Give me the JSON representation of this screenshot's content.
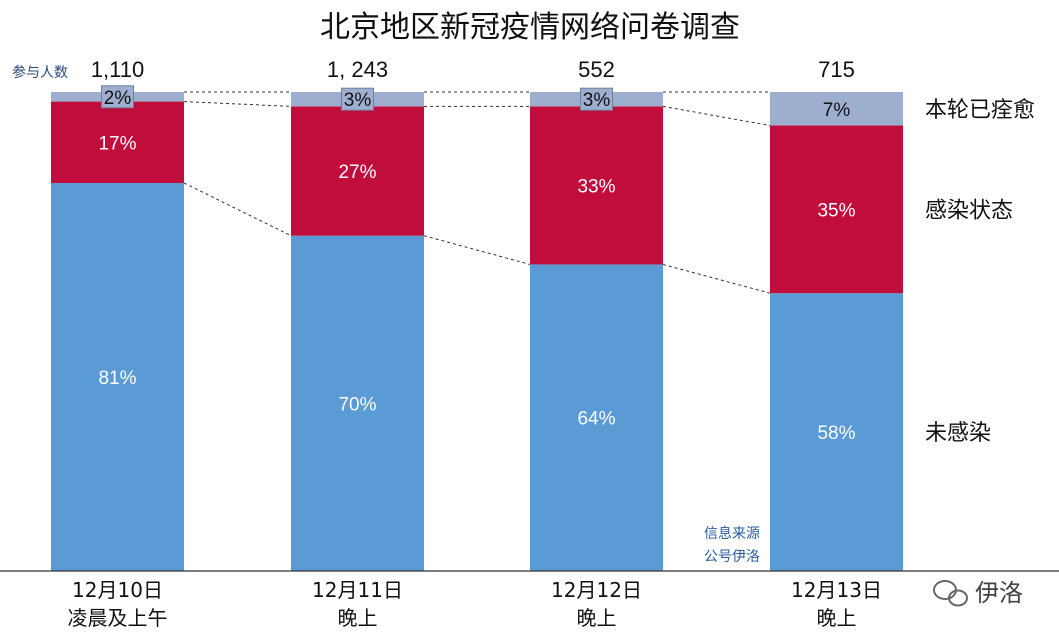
{
  "chart_data": {
    "type": "bar",
    "stacked": true,
    "title": "北京地区新冠疫情网络问卷调查",
    "participants_label": "参与人数",
    "categories": [
      [
        "12月10日",
        "凌晨及上午"
      ],
      [
        "12月11日",
        "晚上"
      ],
      [
        "12月12日",
        "晚上"
      ],
      [
        "12月13日",
        "晚上"
      ]
    ],
    "participants": [
      "1,110",
      "1, 243",
      "552",
      "715"
    ],
    "series": [
      {
        "name": "未感染",
        "values": [
          81,
          70,
          64,
          58
        ],
        "color": "#5b9bd5"
      },
      {
        "name": "感染状态",
        "values": [
          17,
          27,
          33,
          35
        ],
        "color": "#c00d3c"
      },
      {
        "name": "本轮已痊愈",
        "values": [
          2,
          3,
          3,
          7
        ],
        "color": "#9daecf"
      }
    ],
    "ylim": [
      0,
      100
    ],
    "grid": false,
    "legend_position": "right"
  },
  "source_note": [
    "信息来源",
    "公号伊洛"
  ],
  "watermark": "伊洛"
}
